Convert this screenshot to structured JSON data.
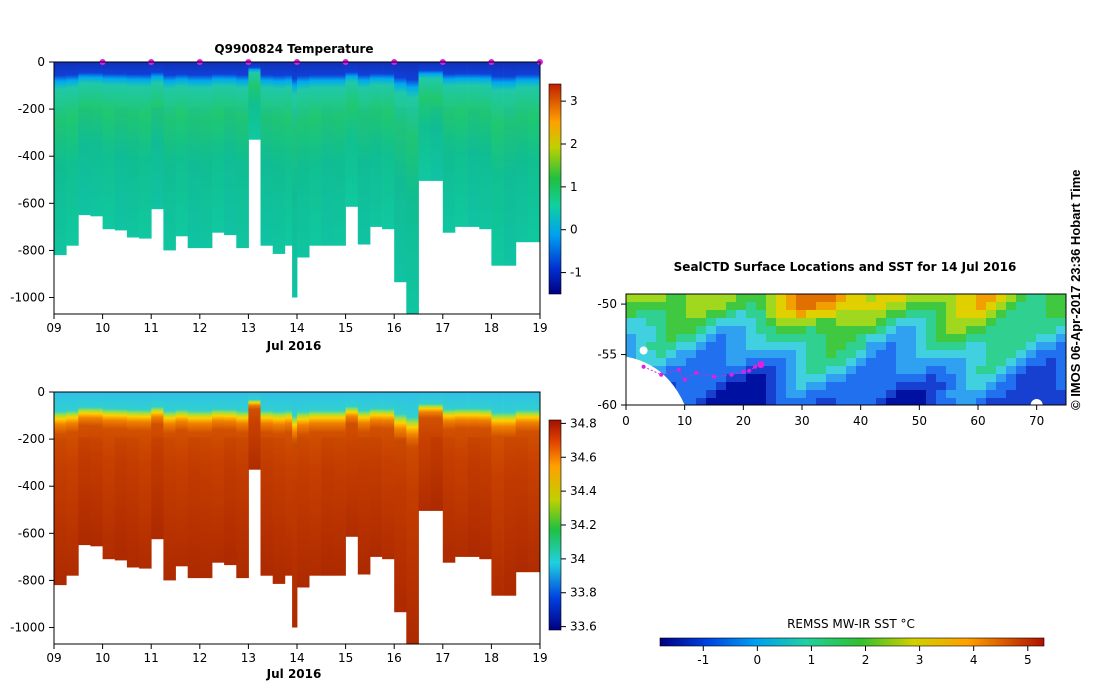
{
  "credit": "© IMOS 06-Apr-2017 23:36 Hobart Time",
  "chart_data": [
    {
      "type": "heatmap",
      "title": "Q9900824  Temperature",
      "xlabel": "Jul 2016",
      "ylabel": "",
      "x_ticks": [
        "09",
        "10",
        "11",
        "12",
        "13",
        "14",
        "15",
        "16",
        "17",
        "18",
        "19"
      ],
      "x_range": [
        9,
        19
      ],
      "y_ticks": [
        0,
        -200,
        -400,
        -600,
        -800,
        -1000
      ],
      "ylim": [
        -1070,
        0
      ],
      "colorbar_ticks": [
        3,
        2,
        1,
        0,
        -1
      ],
      "colorbar_range": [
        -1.5,
        3.4
      ],
      "profile_day": [
        9.0,
        9.25,
        9.5,
        9.75,
        10.0,
        10.25,
        10.5,
        10.75,
        11.0,
        11.25,
        11.5,
        11.75,
        12.0,
        12.25,
        12.5,
        12.75,
        13.0,
        13.25,
        13.5,
        13.75,
        13.9,
        14.0,
        14.25,
        14.5,
        14.75,
        15.0,
        15.25,
        15.5,
        15.75,
        16.0,
        16.25,
        16.5,
        16.75,
        17.0,
        17.25,
        17.5,
        17.75,
        18.0,
        18.25,
        18.5,
        18.75
      ],
      "profile_max_depth": [
        -820,
        -780,
        -650,
        -655,
        -710,
        -715,
        -745,
        -750,
        -625,
        -800,
        -740,
        -790,
        -790,
        -725,
        -735,
        -790,
        -330,
        -780,
        -815,
        -780,
        -1000,
        -830,
        -780,
        -780,
        -780,
        -615,
        -775,
        -700,
        -710,
        -935,
        -1070,
        -505,
        -505,
        -725,
        -700,
        -700,
        -710,
        -865,
        -865,
        -765,
        -765
      ],
      "surface_markers_day": [
        10,
        11,
        12,
        13,
        14,
        15,
        16,
        17,
        18,
        19
      ],
      "mixed_layer_bottom": -150,
      "colors": {
        "surface": "#1030c8",
        "thermocline": "#00a0f0",
        "deep": "#10c890",
        "warm_core": "#20c860",
        "marker": "#e020e0"
      }
    },
    {
      "type": "heatmap",
      "title": "",
      "xlabel": "Jul 2016",
      "ylabel": "",
      "x_ticks": [
        "09",
        "10",
        "11",
        "12",
        "13",
        "14",
        "15",
        "16",
        "17",
        "18",
        "19"
      ],
      "x_range": [
        9,
        19
      ],
      "y_ticks": [
        0,
        -200,
        -400,
        -600,
        -800,
        -1000
      ],
      "ylim": [
        -1070,
        0
      ],
      "colorbar_ticks": [
        "34.8",
        "34.6",
        "34.4",
        "34.2",
        "34",
        "33.8",
        "33.6"
      ],
      "colorbar_range": [
        33.58,
        34.82
      ],
      "mixed_layer_bottom": -140,
      "colors": {
        "surface": "#30c8e0",
        "halocline": "#ffd000",
        "deep": "#c83000",
        "deepest": "#b02800"
      }
    },
    {
      "type": "heatmap",
      "title": "SealCTD Surface Locations and SST for 14 Jul 2016",
      "xlabel": "",
      "ylabel": "",
      "x_ticks": [
        "0",
        "10",
        "20",
        "30",
        "40",
        "50",
        "60",
        "70"
      ],
      "x_range": [
        0,
        75
      ],
      "y_ticks": [
        "-50",
        "-55",
        "-60"
      ],
      "ylim": [
        -60,
        -49
      ],
      "track_lon": [
        3,
        6,
        9,
        10,
        12,
        15,
        18,
        20,
        21,
        22,
        23
      ],
      "track_lat": [
        -56.2,
        -57.0,
        -56.5,
        -57.5,
        -56.8,
        -57.2,
        -57.0,
        -56.7,
        -56.6,
        -56.2,
        -56.0
      ],
      "colorbar_label": "REMSS MW-IR SST °C",
      "colorbar_ticks": [
        "-1",
        "0",
        "1",
        "2",
        "3",
        "4",
        "5"
      ],
      "colorbar_range": [
        -1.8,
        5.3
      ],
      "colors": {
        "cold": "#1840c0",
        "mid": "#40e0d0",
        "warm": "#ffb040",
        "track": "#e020e0"
      }
    }
  ]
}
